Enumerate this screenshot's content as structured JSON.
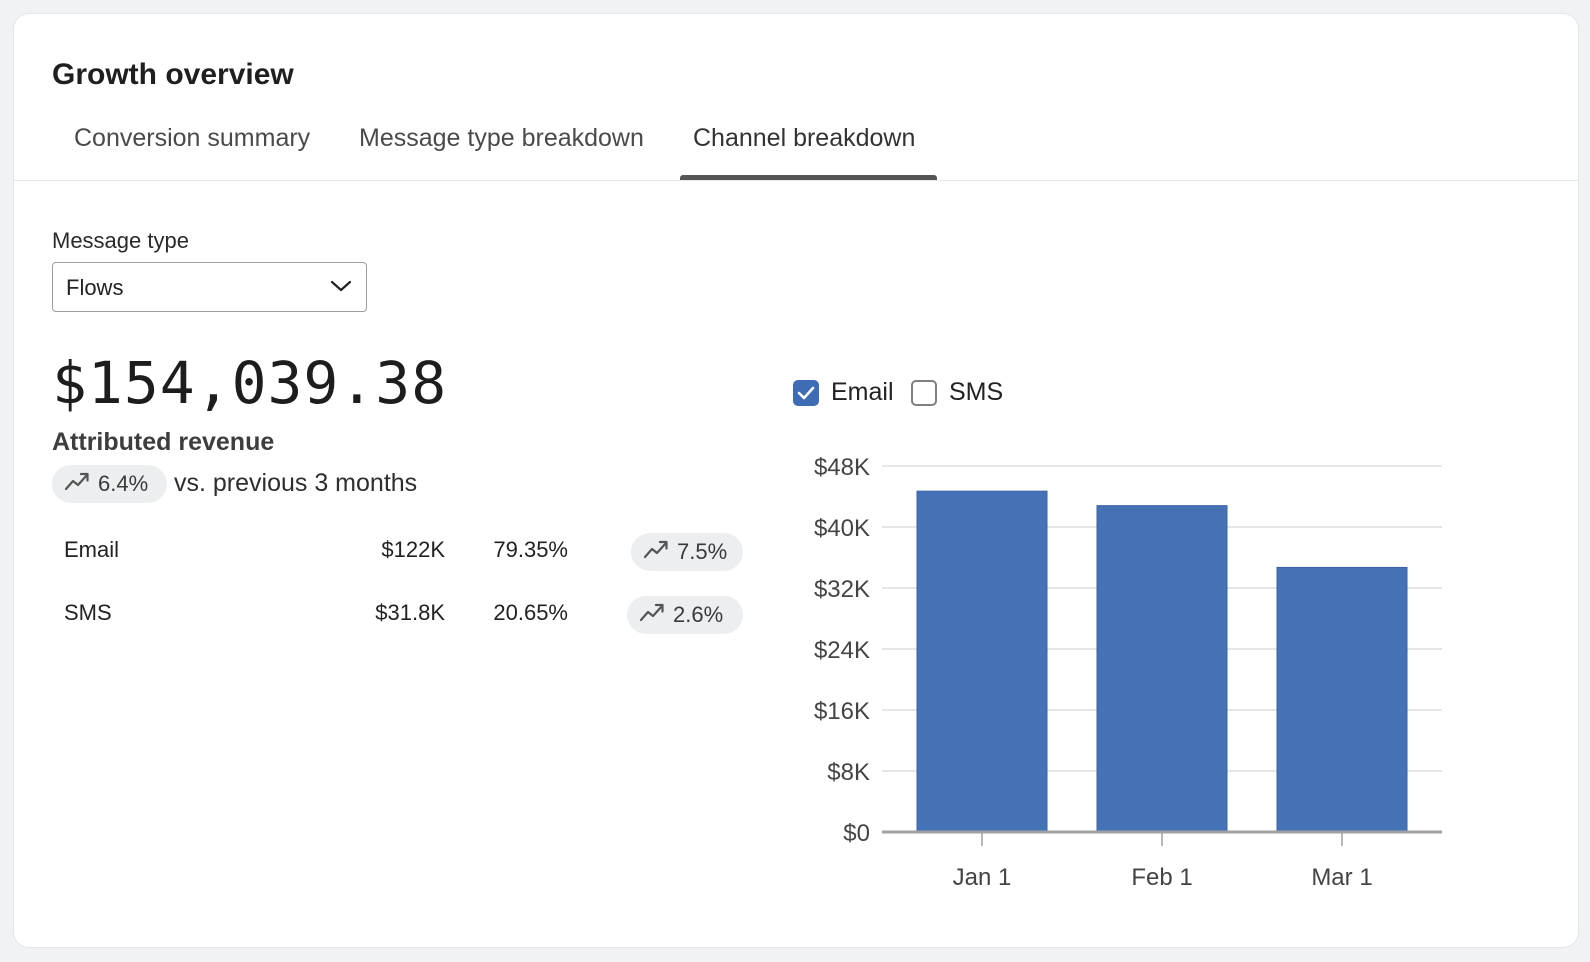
{
  "card": {
    "title": "Growth overview"
  },
  "tabs": [
    {
      "label": "Conversion summary",
      "active": false
    },
    {
      "label": "Message type breakdown",
      "active": false
    },
    {
      "label": "Channel breakdown",
      "active": true
    }
  ],
  "filter": {
    "label": "Message type",
    "selected": "Flows",
    "icon": "chevron-down-icon"
  },
  "summary": {
    "total": "$154,039.38",
    "metric_label": "Attributed revenue",
    "change": "6.4%",
    "change_icon": "trend-up-icon",
    "comparison": "vs. previous 3 months"
  },
  "channels": [
    {
      "name": "Email",
      "revenue": "$122K",
      "share": "79.35%",
      "change": "7.5%"
    },
    {
      "name": "SMS",
      "revenue": "$31.8K",
      "share": "20.65%",
      "change": "2.6%"
    }
  ],
  "legend": [
    {
      "label": "Email",
      "checked": true
    },
    {
      "label": "SMS",
      "checked": false
    }
  ],
  "colors": {
    "email_series": "#4572b5",
    "checkbox_checked": "#3f6db5"
  },
  "chart_data": {
    "type": "bar",
    "categories": [
      "Jan 1",
      "Feb 1",
      "Mar 1"
    ],
    "series": [
      {
        "name": "Email",
        "values": [
          44700,
          42800,
          34700
        ]
      }
    ],
    "yticks": [
      "$0",
      "$8K",
      "$16K",
      "$24K",
      "$32K",
      "$40K",
      "$48K"
    ],
    "ylim": [
      0,
      48000
    ],
    "grid": true,
    "legend": "top-left"
  }
}
